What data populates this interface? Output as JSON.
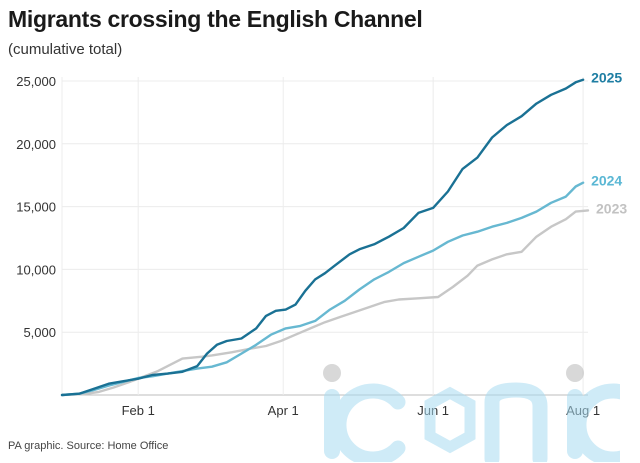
{
  "title": "Migrants crossing the English Channel",
  "subtitle": "(cumulative total)",
  "source": "PA graphic. Source: Home Office",
  "watermark_text": "iconic",
  "chart_data": {
    "type": "line",
    "x_unit": "day of year",
    "xlim": [
      1,
      215
    ],
    "ylim": [
      0,
      25000
    ],
    "yticks": [
      5000,
      10000,
      15000,
      20000,
      25000
    ],
    "ytick_labels": [
      "5,000",
      "10,000",
      "15,000",
      "20,000",
      "25,000"
    ],
    "xtick_labels": [
      {
        "label": "Feb 1",
        "day": 32
      },
      {
        "label": "Apr 1",
        "day": 91
      },
      {
        "label": "Jun 1",
        "day": 152
      },
      {
        "label": "Aug 1",
        "day": 213
      }
    ],
    "series": [
      {
        "name": "2023",
        "color": "#c7c7c7",
        "label_color": "#c2c2c2",
        "points": [
          [
            1,
            0
          ],
          [
            10,
            80
          ],
          [
            16,
            250
          ],
          [
            22,
            600
          ],
          [
            28,
            1000
          ],
          [
            34,
            1450
          ],
          [
            40,
            1900
          ],
          [
            46,
            2500
          ],
          [
            50,
            2900
          ],
          [
            58,
            3050
          ],
          [
            62,
            3150
          ],
          [
            70,
            3400
          ],
          [
            78,
            3700
          ],
          [
            84,
            3900
          ],
          [
            90,
            4300
          ],
          [
            96,
            4800
          ],
          [
            102,
            5300
          ],
          [
            108,
            5800
          ],
          [
            114,
            6200
          ],
          [
            120,
            6600
          ],
          [
            126,
            7000
          ],
          [
            132,
            7400
          ],
          [
            138,
            7600
          ],
          [
            146,
            7700
          ],
          [
            154,
            7800
          ],
          [
            160,
            8600
          ],
          [
            166,
            9500
          ],
          [
            170,
            10300
          ],
          [
            176,
            10800
          ],
          [
            182,
            11200
          ],
          [
            188,
            11400
          ],
          [
            194,
            12600
          ],
          [
            200,
            13400
          ],
          [
            206,
            14000
          ],
          [
            210,
            14600
          ],
          [
            215,
            14700
          ]
        ]
      },
      {
        "name": "2024",
        "color": "#67b8d1",
        "label_color": "#5ab7d4",
        "points": [
          [
            1,
            0
          ],
          [
            8,
            100
          ],
          [
            14,
            400
          ],
          [
            20,
            750
          ],
          [
            26,
            1050
          ],
          [
            32,
            1350
          ],
          [
            38,
            1500
          ],
          [
            44,
            1700
          ],
          [
            50,
            1900
          ],
          [
            56,
            2100
          ],
          [
            62,
            2250
          ],
          [
            68,
            2600
          ],
          [
            74,
            3300
          ],
          [
            80,
            4000
          ],
          [
            86,
            4800
          ],
          [
            92,
            5300
          ],
          [
            98,
            5500
          ],
          [
            104,
            5900
          ],
          [
            110,
            6800
          ],
          [
            116,
            7500
          ],
          [
            122,
            8400
          ],
          [
            128,
            9200
          ],
          [
            134,
            9800
          ],
          [
            140,
            10500
          ],
          [
            146,
            11000
          ],
          [
            152,
            11500
          ],
          [
            158,
            12200
          ],
          [
            164,
            12700
          ],
          [
            170,
            13000
          ],
          [
            176,
            13400
          ],
          [
            182,
            13700
          ],
          [
            188,
            14100
          ],
          [
            194,
            14600
          ],
          [
            200,
            15300
          ],
          [
            206,
            15800
          ],
          [
            210,
            16600
          ],
          [
            213,
            16900
          ]
        ]
      },
      {
        "name": "2025",
        "color": "#1a7194",
        "label_color": "#1f7ea3",
        "points": [
          [
            1,
            0
          ],
          [
            8,
            100
          ],
          [
            14,
            500
          ],
          [
            20,
            900
          ],
          [
            26,
            1100
          ],
          [
            32,
            1300
          ],
          [
            38,
            1600
          ],
          [
            44,
            1700
          ],
          [
            50,
            1850
          ],
          [
            56,
            2300
          ],
          [
            60,
            3300
          ],
          [
            64,
            4000
          ],
          [
            68,
            4300
          ],
          [
            74,
            4500
          ],
          [
            80,
            5300
          ],
          [
            84,
            6300
          ],
          [
            88,
            6700
          ],
          [
            92,
            6800
          ],
          [
            96,
            7200
          ],
          [
            100,
            8300
          ],
          [
            104,
            9200
          ],
          [
            108,
            9700
          ],
          [
            112,
            10300
          ],
          [
            118,
            11200
          ],
          [
            122,
            11600
          ],
          [
            128,
            12000
          ],
          [
            134,
            12600
          ],
          [
            140,
            13300
          ],
          [
            146,
            14500
          ],
          [
            152,
            14900
          ],
          [
            158,
            16200
          ],
          [
            164,
            18000
          ],
          [
            170,
            18900
          ],
          [
            176,
            20500
          ],
          [
            182,
            21500
          ],
          [
            188,
            22200
          ],
          [
            194,
            23200
          ],
          [
            200,
            23900
          ],
          [
            206,
            24400
          ],
          [
            210,
            24900
          ],
          [
            213,
            25100
          ]
        ]
      }
    ]
  }
}
